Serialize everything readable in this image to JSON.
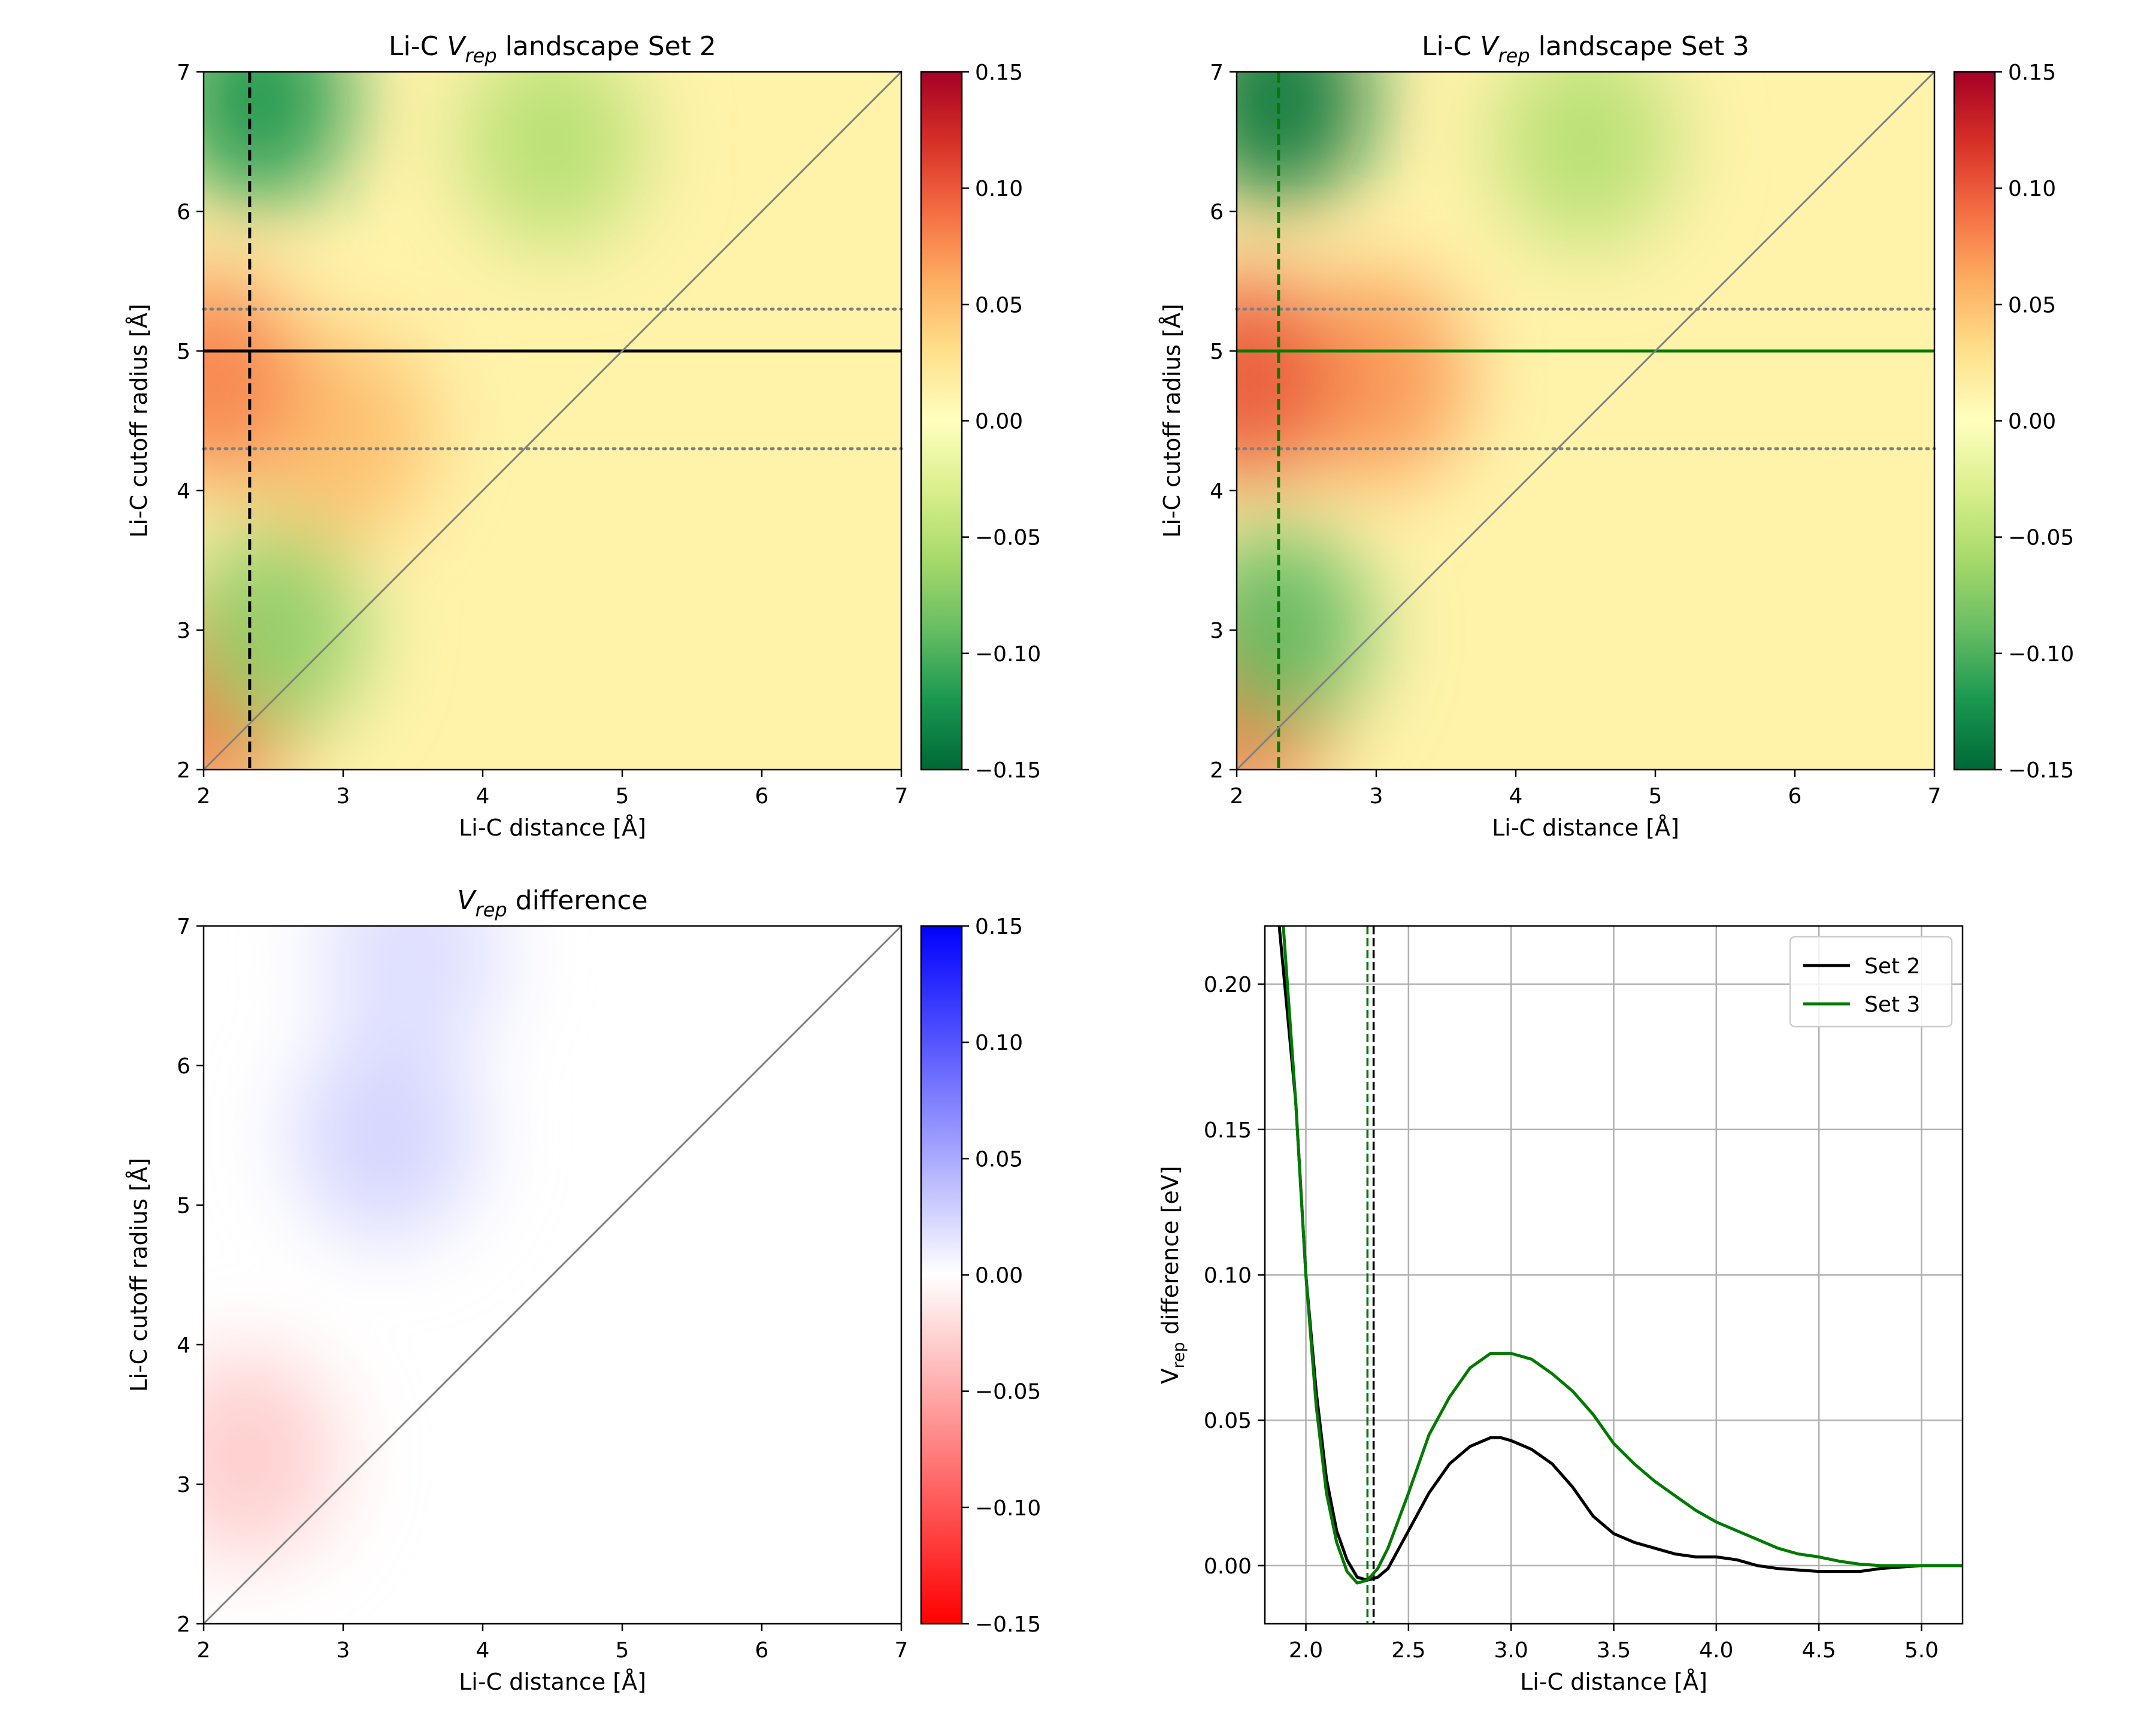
{
  "chart_data": [
    {
      "type": "heatmap",
      "title_parts": [
        "Li-C ",
        "V",
        "rep",
        " landscape Set 2"
      ],
      "xlabel": "Li-C distance [Å]",
      "ylabel": "Li-C cutoff radius [Å]",
      "xlim": [
        2,
        7
      ],
      "ylim": [
        2,
        7
      ],
      "xticks": [
        "2",
        "3",
        "4",
        "5",
        "6",
        "7"
      ],
      "yticks": [
        "2",
        "3",
        "4",
        "5",
        "6",
        "7"
      ],
      "colormap": "RdYlGn_r",
      "clim": [
        -0.15,
        0.15
      ],
      "colorbar_ticks": [
        "0.15",
        "0.10",
        "0.05",
        "0.00",
        "−0.05",
        "−0.10",
        "−0.15"
      ],
      "hot_spots": [
        {
          "x": 3.0,
          "y": 4.4,
          "value": 0.05
        },
        {
          "x": 2.05,
          "y": 4.8,
          "value": 0.08
        },
        {
          "x": 2.05,
          "y": 2.5,
          "value": 0.09
        },
        {
          "x": 2.4,
          "y": 6.8,
          "value": -0.12
        },
        {
          "x": 4.5,
          "y": 6.5,
          "value": -0.05
        },
        {
          "x": 2.5,
          "y": 3.0,
          "value": -0.07
        }
      ],
      "reference_lines": {
        "solid_horizontal_y": 5.0,
        "dotted_horizontal_y": [
          5.3,
          4.3
        ],
        "dashed_vertical_x": 2.33,
        "diagonal": "y = x",
        "line_color": "#000000"
      }
    },
    {
      "type": "heatmap",
      "title_parts": [
        "Li-C ",
        "V",
        "rep",
        " landscape Set 3"
      ],
      "xlabel": "Li-C distance [Å]",
      "ylabel": "Li-C cutoff radius [Å]",
      "xlim": [
        2,
        7
      ],
      "ylim": [
        2,
        7
      ],
      "xticks": [
        "2",
        "3",
        "4",
        "5",
        "6",
        "7"
      ],
      "yticks": [
        "2",
        "3",
        "4",
        "5",
        "6",
        "7"
      ],
      "colormap": "RdYlGn_r",
      "clim": [
        -0.15,
        0.15
      ],
      "colorbar_ticks": [
        "0.15",
        "0.10",
        "0.05",
        "0.00",
        "−0.05",
        "−0.10",
        "−0.15"
      ],
      "hot_spots": [
        {
          "x": 3.0,
          "y": 4.8,
          "value": 0.07
        },
        {
          "x": 2.05,
          "y": 4.8,
          "value": 0.1
        },
        {
          "x": 2.05,
          "y": 2.5,
          "value": 0.09
        },
        {
          "x": 2.3,
          "y": 6.8,
          "value": -0.14
        },
        {
          "x": 4.5,
          "y": 6.5,
          "value": -0.05
        },
        {
          "x": 2.3,
          "y": 3.0,
          "value": -0.09
        }
      ],
      "reference_lines": {
        "solid_horizontal_y": 5.0,
        "dotted_horizontal_y": [
          5.3,
          4.3
        ],
        "dashed_vertical_x": 2.3,
        "diagonal": "y = x",
        "line_color": "#007a00"
      }
    },
    {
      "type": "heatmap",
      "title_parts": [
        "",
        "V",
        "rep",
        " difference"
      ],
      "xlabel": "Li-C distance [Å]",
      "ylabel": "Li-C cutoff radius [Å]",
      "xlim": [
        2,
        7
      ],
      "ylim": [
        2,
        7
      ],
      "xticks": [
        "2",
        "3",
        "4",
        "5",
        "6",
        "7"
      ],
      "yticks": [
        "2",
        "3",
        "4",
        "5",
        "6",
        "7"
      ],
      "colormap": "bwr_r",
      "clim": [
        -0.15,
        0.15
      ],
      "colorbar_ticks": [
        "0.15",
        "0.10",
        "0.05",
        "0.00",
        "−0.05",
        "−0.10",
        "−0.15"
      ],
      "hot_spots": [
        {
          "x": 2.3,
          "y": 3.2,
          "value": -0.03
        },
        {
          "x": 3.3,
          "y": 5.5,
          "value": 0.025
        },
        {
          "x": 3.5,
          "y": 6.8,
          "value": 0.02
        }
      ],
      "reference_lines": {
        "diagonal": "y = x"
      }
    },
    {
      "type": "line",
      "title": "",
      "xlabel": "Li-C distance [Å]",
      "ylabel_parts": [
        "V",
        "rep",
        " difference [eV]"
      ],
      "xlim": [
        1.8,
        5.2
      ],
      "ylim": [
        -0.02,
        0.22
      ],
      "grid": true,
      "xticks": [
        "2.0",
        "2.5",
        "3.0",
        "3.5",
        "4.0",
        "4.5",
        "5.0"
      ],
      "yticks": [
        "0.00",
        "0.05",
        "0.10",
        "0.15",
        "0.20"
      ],
      "legend_position": "top-right",
      "series": [
        {
          "name": "Set 2",
          "color": "#000000",
          "x": [
            1.87,
            1.95,
            2.0,
            2.05,
            2.1,
            2.15,
            2.2,
            2.25,
            2.3,
            2.35,
            2.4,
            2.5,
            2.6,
            2.7,
            2.8,
            2.9,
            2.95,
            3.0,
            3.1,
            3.2,
            3.3,
            3.4,
            3.5,
            3.6,
            3.7,
            3.8,
            3.9,
            4.0,
            4.1,
            4.2,
            4.3,
            4.4,
            4.5,
            4.6,
            4.7,
            4.8,
            4.9,
            5.0,
            5.2
          ],
          "y": [
            0.22,
            0.16,
            0.1,
            0.06,
            0.03,
            0.012,
            0.002,
            -0.004,
            -0.005,
            -0.004,
            -0.001,
            0.012,
            0.025,
            0.035,
            0.041,
            0.044,
            0.044,
            0.043,
            0.04,
            0.035,
            0.027,
            0.017,
            0.011,
            0.008,
            0.006,
            0.004,
            0.003,
            0.003,
            0.002,
            0.0,
            -0.001,
            -0.0015,
            -0.002,
            -0.002,
            -0.002,
            -0.001,
            -0.0005,
            0.0,
            0.0
          ]
        },
        {
          "name": "Set 3",
          "color": "#007a00",
          "x": [
            1.89,
            1.95,
            2.0,
            2.05,
            2.1,
            2.15,
            2.2,
            2.25,
            2.3,
            2.35,
            2.4,
            2.5,
            2.6,
            2.7,
            2.8,
            2.9,
            3.0,
            3.1,
            3.2,
            3.3,
            3.4,
            3.5,
            3.6,
            3.7,
            3.8,
            3.9,
            4.0,
            4.1,
            4.2,
            4.3,
            4.4,
            4.5,
            4.6,
            4.7,
            4.8,
            4.9,
            5.0,
            5.2
          ],
          "y": [
            0.22,
            0.16,
            0.1,
            0.055,
            0.025,
            0.008,
            -0.002,
            -0.006,
            -0.005,
            -0.001,
            0.006,
            0.025,
            0.045,
            0.058,
            0.068,
            0.073,
            0.073,
            0.071,
            0.066,
            0.06,
            0.052,
            0.042,
            0.035,
            0.029,
            0.024,
            0.019,
            0.015,
            0.012,
            0.009,
            0.006,
            0.004,
            0.003,
            0.0015,
            0.0005,
            0.0,
            0.0,
            0.0,
            0.0
          ]
        }
      ],
      "vertical_lines": [
        {
          "x": 2.33,
          "color": "#000000",
          "style": "dashed"
        },
        {
          "x": 2.3,
          "color": "#007a00",
          "style": "dashed"
        }
      ]
    }
  ]
}
